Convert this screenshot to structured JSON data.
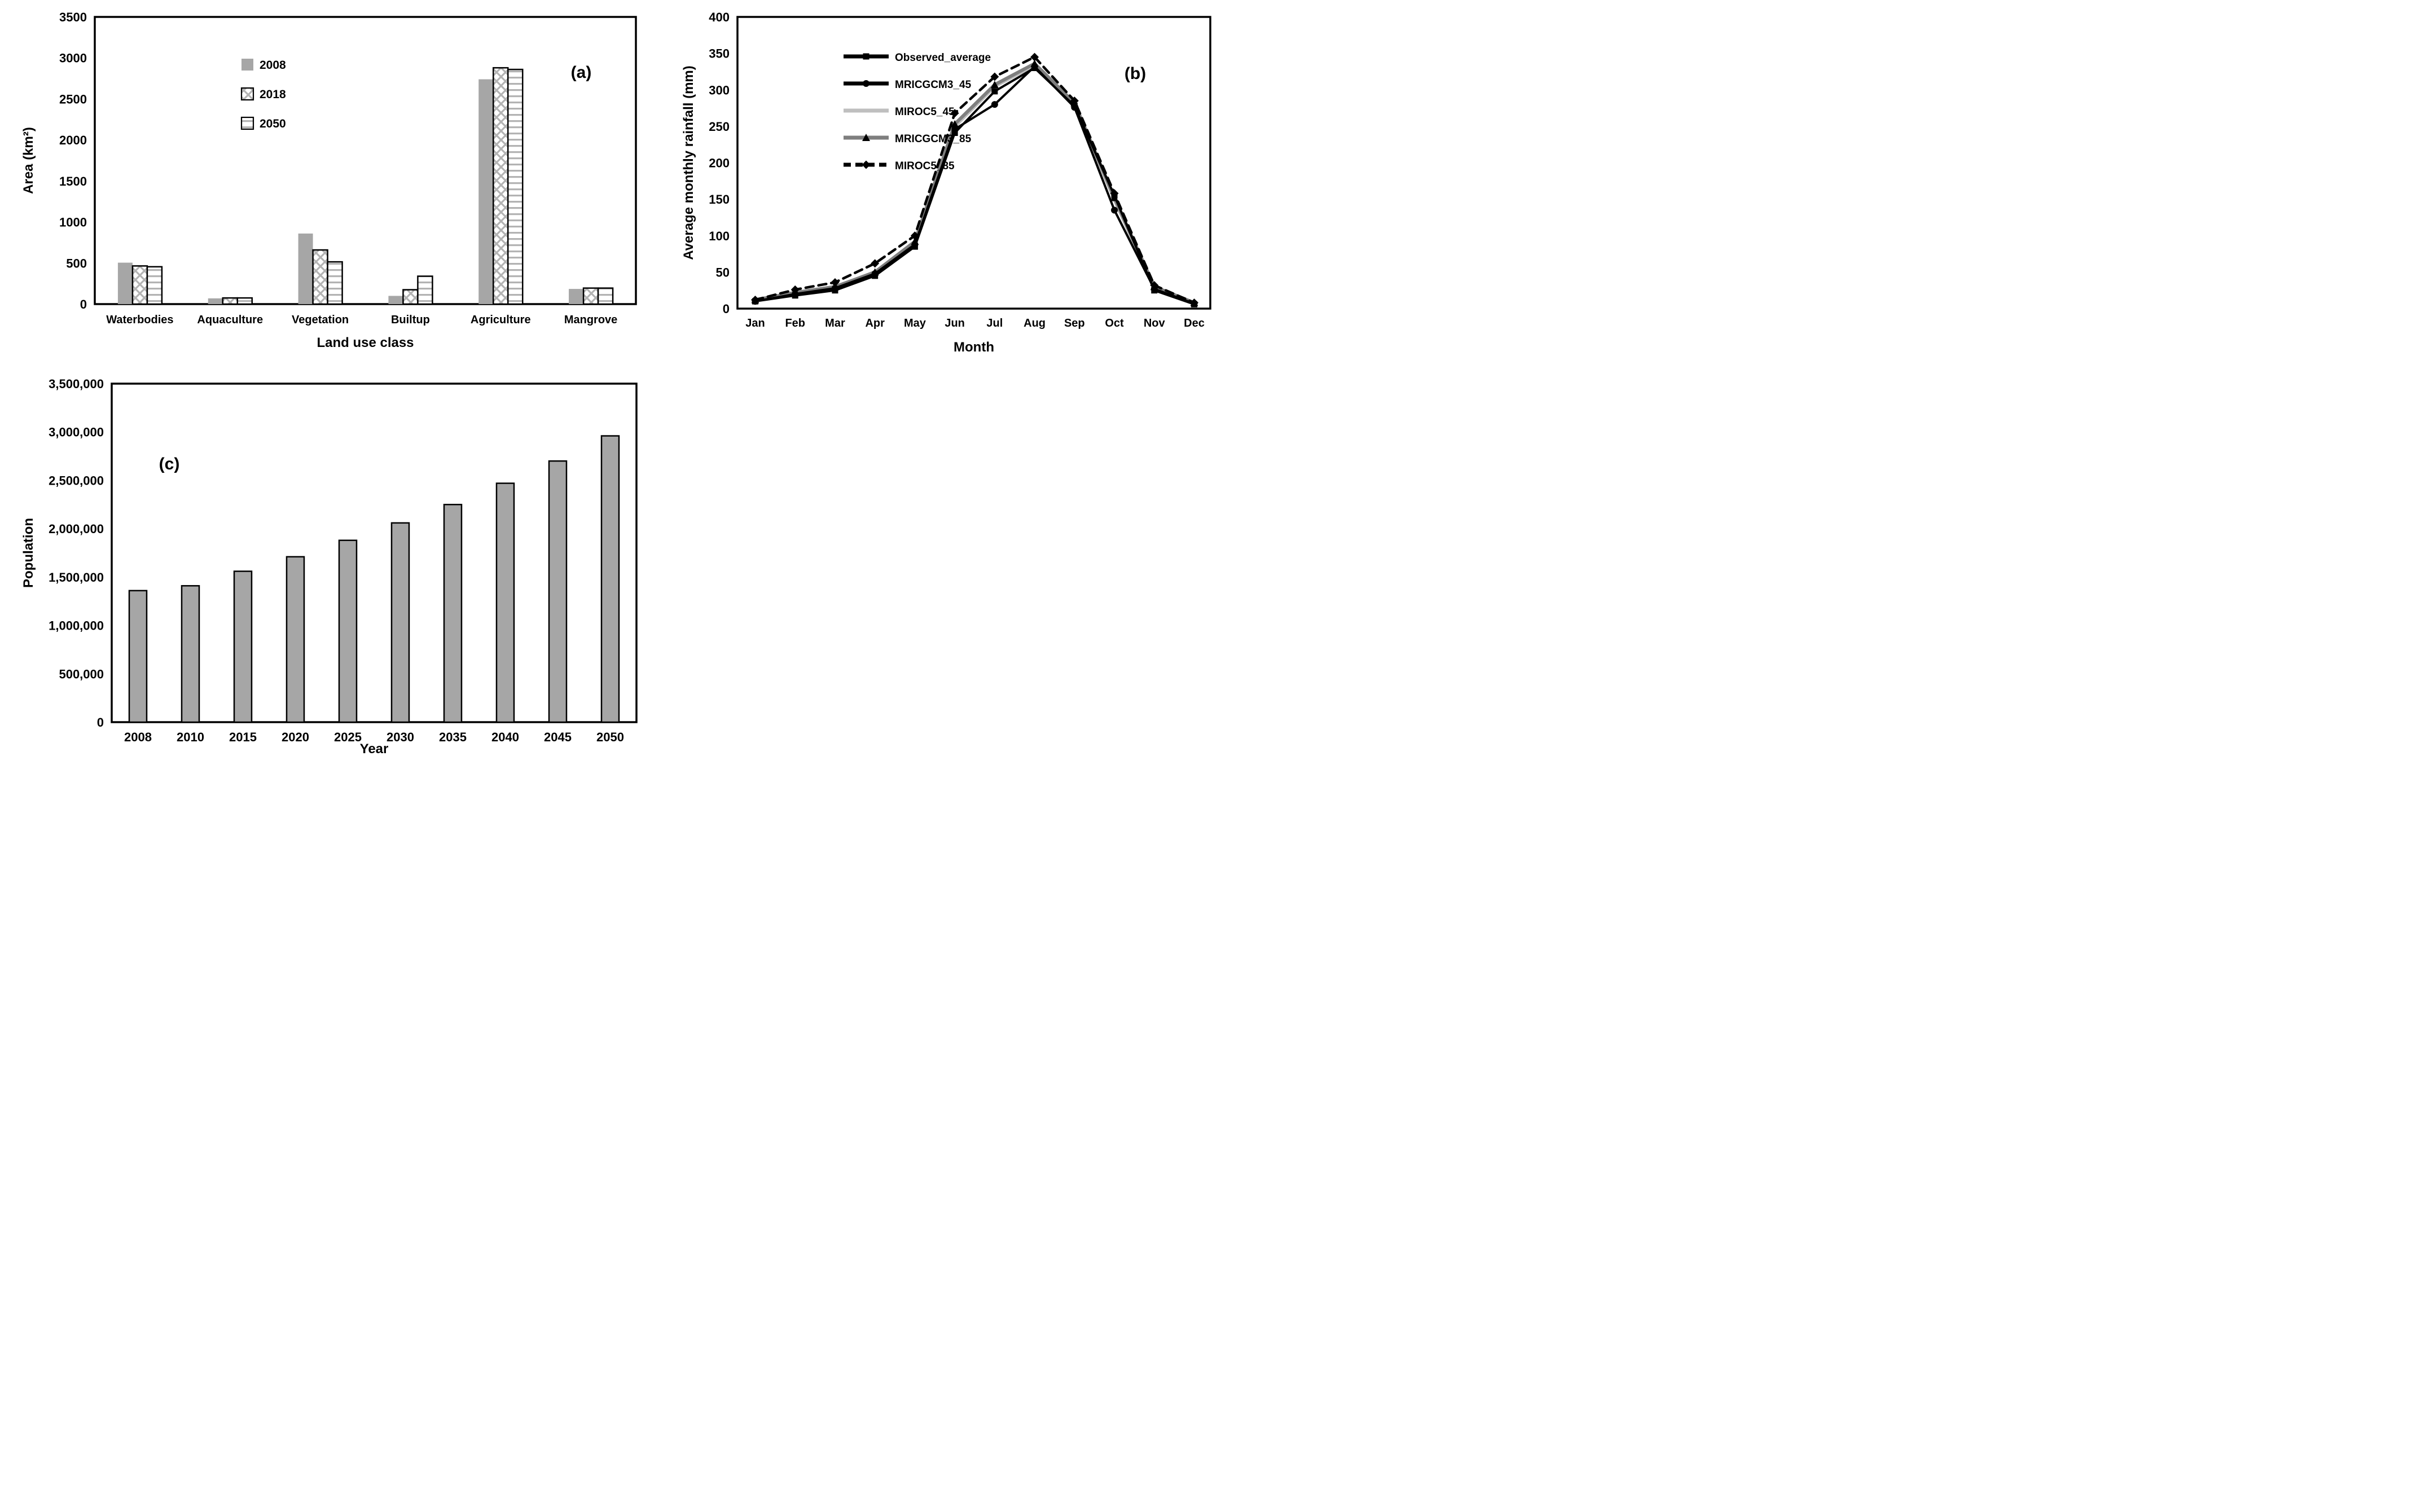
{
  "figure": {
    "background": "#ffffff",
    "panel_labels": {
      "a": "(a)",
      "b": "(b)",
      "c": "(c)"
    }
  },
  "colors": {
    "bar_gray": "#a6a6a6",
    "pattern_gray": "#b3b3b3",
    "light_gray_line": "#bfbfbf",
    "dark_gray_line": "#7f7f7f",
    "black": "#000000",
    "white": "#ffffff"
  },
  "chart_data": [
    {
      "id": "a",
      "type": "bar",
      "panel_label": "(a)",
      "xlabel": "Land use class",
      "ylabel": "Area (km²)",
      "ylim": [
        0,
        3500
      ],
      "ytick_step": 500,
      "grid": false,
      "legend_position": "inside-upper-left",
      "categories": [
        "Waterbodies",
        "Aquaculture",
        "Vegetation",
        "Builtup",
        "Agriculture",
        "Mangrove"
      ],
      "series": [
        {
          "name": "2008",
          "style": "solid-gray",
          "values": [
            505,
            70,
            860,
            100,
            2740,
            185
          ]
        },
        {
          "name": "2018",
          "style": "crosshatch",
          "values": [
            465,
            75,
            660,
            175,
            2880,
            195
          ]
        },
        {
          "name": "2050",
          "style": "hlines",
          "values": [
            455,
            75,
            515,
            340,
            2860,
            195
          ]
        }
      ]
    },
    {
      "id": "b",
      "type": "line",
      "panel_label": "(b)",
      "xlabel": "Month",
      "ylabel": "Average monthly rainfall (mm)",
      "ylim": [
        0,
        400
      ],
      "ytick_step": 50,
      "grid": false,
      "legend_position": "inside-upper-left",
      "x": [
        "Jan",
        "Feb",
        "Mar",
        "Apr",
        "May",
        "Jun",
        "Jul",
        "Aug",
        "Sep",
        "Oct",
        "Nov",
        "Dec"
      ],
      "series": [
        {
          "name": "Observed_average",
          "color": "#000000",
          "dash": "solid",
          "marker": "square",
          "values": [
            10,
            18,
            25,
            45,
            85,
            241,
            298,
            330,
            278,
            155,
            25,
            6
          ]
        },
        {
          "name": "MRICGCM3_45",
          "color": "#000000",
          "dash": "solid",
          "marker": "circle",
          "values": [
            10,
            20,
            28,
            48,
            88,
            246,
            280,
            332,
            276,
            135,
            27,
            7
          ]
        },
        {
          "name": "MIROC5_45",
          "color": "#bfbfbf",
          "dash": "solid",
          "marker": "none",
          "values": [
            11,
            21,
            29,
            50,
            90,
            250,
            305,
            334,
            280,
            150,
            28,
            7
          ]
        },
        {
          "name": "MRICGCM3_85",
          "color": "#7f7f7f",
          "dash": "solid",
          "marker": "triangle",
          "values": [
            12,
            22,
            30,
            50,
            92,
            253,
            307,
            336,
            282,
            152,
            30,
            8
          ]
        },
        {
          "name": "MIROC5_85",
          "color": "#000000",
          "dash": "dashed",
          "marker": "diamond",
          "values": [
            12,
            26,
            36,
            62,
            100,
            268,
            318,
            345,
            285,
            158,
            32,
            8
          ]
        }
      ]
    },
    {
      "id": "c",
      "type": "bar",
      "panel_label": "(c)",
      "xlabel": "Year",
      "ylabel": "Population",
      "ylim": [
        0,
        3500000
      ],
      "ytick_step": 500000,
      "grid": false,
      "legend_position": "none",
      "categories": [
        "2008",
        "2010",
        "2015",
        "2020",
        "2025",
        "2030",
        "2035",
        "2040",
        "2045",
        "2050"
      ],
      "series": [
        {
          "name": "Population",
          "style": "solid-gray-outlined",
          "values": [
            1360000,
            1410000,
            1560000,
            1710000,
            1880000,
            2060000,
            2250000,
            2470000,
            2700000,
            2960000
          ]
        }
      ]
    }
  ]
}
